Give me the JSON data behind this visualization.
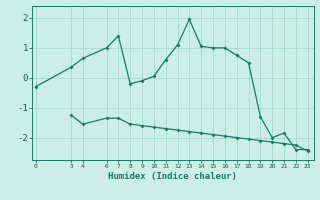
{
  "xlabel": "Humidex (Indice chaleur)",
  "bg_color": "#cceee8",
  "grid_color": "#aaddcc",
  "line_color": "#1a7a6a",
  "curve1_x": [
    0,
    3,
    4,
    6,
    7,
    8,
    9,
    10,
    11,
    12,
    13,
    14,
    15,
    16,
    17,
    18,
    19,
    20,
    21,
    22,
    23
  ],
  "curve1_y": [
    -0.3,
    0.35,
    0.65,
    1.0,
    1.4,
    -0.2,
    -0.1,
    0.05,
    0.6,
    1.1,
    1.95,
    1.05,
    1.0,
    1.0,
    0.75,
    0.5,
    -1.3,
    -2.0,
    -1.85,
    -2.4,
    -2.4
  ],
  "curve2_x": [
    3,
    4,
    6,
    7,
    8,
    9,
    10,
    11,
    12,
    13,
    14,
    15,
    16,
    17,
    18,
    19,
    20,
    21,
    22,
    23
  ],
  "curve2_y": [
    -1.25,
    -1.55,
    -1.35,
    -1.35,
    -1.55,
    -1.6,
    -1.65,
    -1.7,
    -1.75,
    -1.8,
    -1.85,
    -1.9,
    -1.95,
    -2.0,
    -2.05,
    -2.1,
    -2.15,
    -2.2,
    -2.25,
    -2.45
  ],
  "xticks": [
    0,
    3,
    4,
    6,
    7,
    8,
    9,
    10,
    11,
    12,
    13,
    14,
    15,
    16,
    17,
    18,
    19,
    20,
    21,
    22,
    23
  ],
  "yticks": [
    -2,
    -1,
    0,
    1,
    2
  ],
  "xlim": [
    -0.3,
    23.5
  ],
  "ylim": [
    -2.75,
    2.4
  ]
}
